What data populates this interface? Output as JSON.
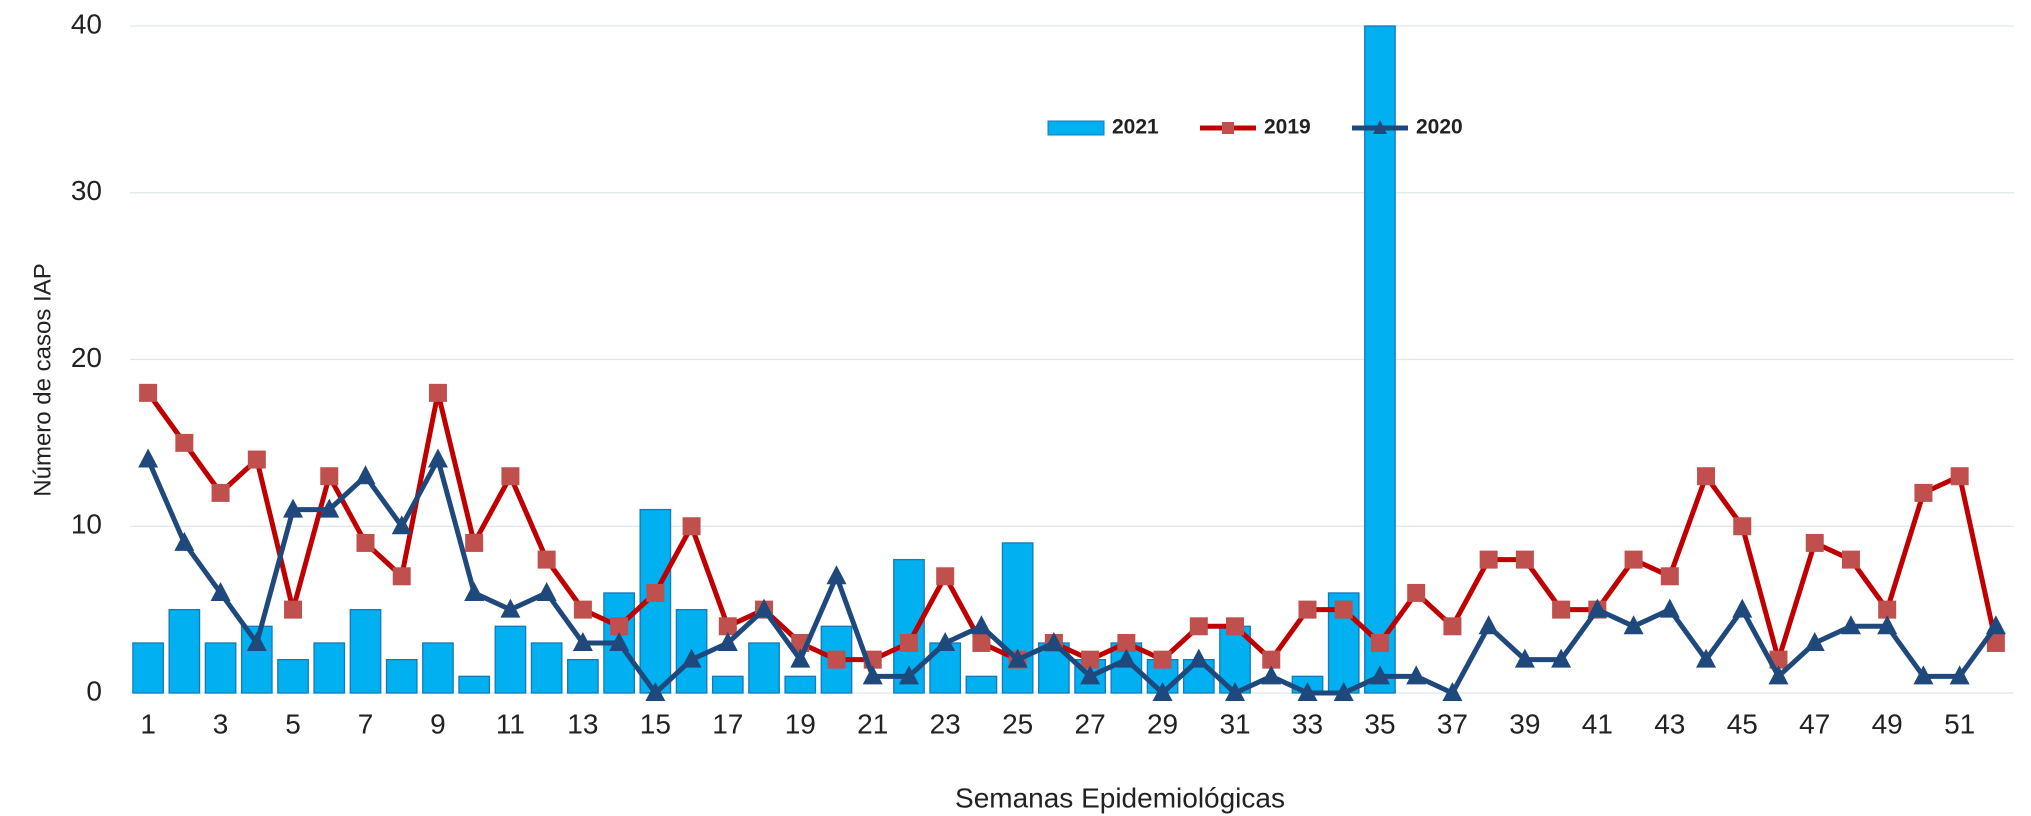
{
  "chart_data": {
    "type": "bar_line",
    "x_label": "Semanas Epidemiológicas",
    "y_label": "Número de casos IAP",
    "categories": [
      1,
      null,
      3,
      null,
      5,
      null,
      7,
      null,
      9,
      null,
      11,
      null,
      13,
      null,
      15,
      null,
      17,
      null,
      19,
      null,
      21,
      null,
      23,
      null,
      25,
      null,
      27,
      null,
      29,
      null,
      31,
      null,
      33,
      null,
      35,
      null,
      37,
      null,
      39,
      null,
      41,
      null,
      43,
      null,
      45,
      null,
      47,
      null,
      49,
      null,
      51,
      null
    ],
    "series": [
      {
        "name": "2021",
        "type": "bar",
        "color": "#00b0f0",
        "values": [
          3,
          5,
          3,
          4,
          2,
          3,
          5,
          2,
          3,
          1,
          4,
          3,
          2,
          6,
          11,
          5,
          1,
          3,
          1,
          4,
          0,
          8,
          3,
          1,
          9,
          3,
          2,
          3,
          2,
          2,
          4,
          0,
          1,
          6,
          40,
          null,
          null,
          null,
          null,
          null,
          null,
          null,
          null,
          null,
          null,
          null,
          null,
          null,
          null,
          null,
          null,
          null
        ]
      },
      {
        "name": "2019",
        "type": "line",
        "color": "#c00000",
        "marker_color": "#c0504d",
        "marker": "square",
        "values": [
          18,
          15,
          12,
          14,
          5,
          13,
          9,
          7,
          18,
          9,
          13,
          8,
          5,
          4,
          6,
          10,
          4,
          5,
          3,
          2,
          2,
          3,
          7,
          3,
          2,
          3,
          2,
          3,
          2,
          4,
          4,
          2,
          5,
          5,
          3,
          6,
          4,
          8,
          8,
          5,
          5,
          8,
          7,
          13,
          10,
          2,
          9,
          8,
          5,
          12,
          13,
          3
        ]
      },
      {
        "name": "2020",
        "type": "line",
        "color": "#1f497d",
        "marker_color": "#1f497d",
        "marker": "triangle",
        "values": [
          14,
          9,
          6,
          3,
          11,
          11,
          13,
          10,
          14,
          6,
          5,
          6,
          3,
          3,
          0,
          2,
          3,
          5,
          2,
          7,
          1,
          1,
          3,
          4,
          2,
          3,
          1,
          2,
          0,
          2,
          0,
          1,
          0,
          0,
          1,
          1,
          0,
          4,
          2,
          2,
          5,
          4,
          5,
          2,
          5,
          1,
          3,
          4,
          4,
          1,
          1,
          4
        ]
      }
    ],
    "ylim": [
      0,
      40
    ],
    "yticks": [
      0,
      10,
      20,
      30,
      40
    ],
    "grid": true,
    "legend": "top"
  }
}
